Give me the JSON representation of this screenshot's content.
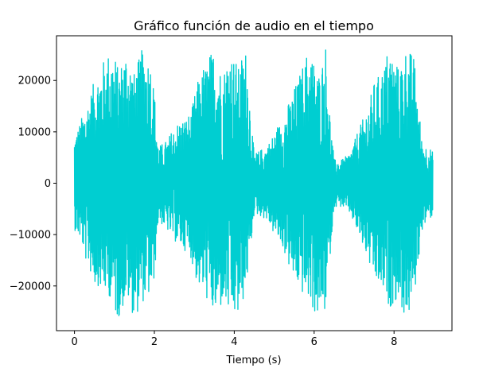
{
  "chart_data": {
    "type": "line",
    "title": "Gráfico función de audio en el tiempo",
    "xlabel": "Tiempo (s)",
    "ylabel": "",
    "xlim": [
      -0.45,
      9.45
    ],
    "ylim": [
      -28700,
      28700
    ],
    "xticks": [
      0,
      2,
      4,
      6,
      8
    ],
    "xtick_labels": [
      "0",
      "2",
      "4",
      "6",
      "8"
    ],
    "yticks": [
      20000,
      10000,
      0,
      -10000,
      -20000
    ],
    "ytick_labels": [
      "20000",
      "10000",
      "0",
      "−10000",
      "−20000"
    ],
    "grid": false,
    "series": [
      {
        "color": "#00CED1",
        "duration_s": 8.97,
        "envelope": {
          "t": [
            0,
            0.15,
            0.3,
            0.5,
            0.7,
            0.9,
            1.1,
            1.3,
            1.5,
            1.7,
            1.9,
            2.0,
            2.1,
            2.3,
            2.6,
            2.9,
            3.1,
            3.3,
            3.5,
            3.7,
            3.9,
            4.1,
            4.3,
            4.4,
            4.5,
            4.8,
            5.1,
            5.3,
            5.5,
            5.7,
            5.9,
            6.1,
            6.3,
            6.4,
            6.5,
            6.7,
            6.9,
            7.1,
            7.3,
            7.5,
            7.7,
            7.9,
            8.1,
            8.3,
            8.5,
            8.7,
            8.97
          ],
          "max": [
            9000,
            12000,
            15000,
            20000,
            23000,
            26200,
            22000,
            26200,
            21000,
            26200,
            24000,
            18000,
            7000,
            8000,
            12000,
            13000,
            20000,
            23000,
            26200,
            21000,
            26200,
            22000,
            26200,
            15000,
            5500,
            7000,
            11000,
            14000,
            18000,
            22000,
            26200,
            21000,
            26200,
            13000,
            4500,
            4500,
            6000,
            10000,
            14000,
            19000,
            22000,
            26200,
            22000,
            26200,
            24000,
            8000,
            6000
          ],
          "min": [
            -9000,
            -11000,
            -15000,
            -19000,
            -21000,
            -22000,
            -26000,
            -22000,
            -26200,
            -23000,
            -22000,
            -18000,
            -7000,
            -9000,
            -12000,
            -14000,
            -20000,
            -22000,
            -26200,
            -23000,
            -26000,
            -26200,
            -20000,
            -14000,
            -5500,
            -7000,
            -11000,
            -14000,
            -19000,
            -21000,
            -23000,
            -26200,
            -24000,
            -14000,
            -4500,
            -4500,
            -6000,
            -10000,
            -14000,
            -19000,
            -21000,
            -24000,
            -22000,
            -26200,
            -22000,
            -9000,
            -6000
          ]
        }
      }
    ]
  }
}
